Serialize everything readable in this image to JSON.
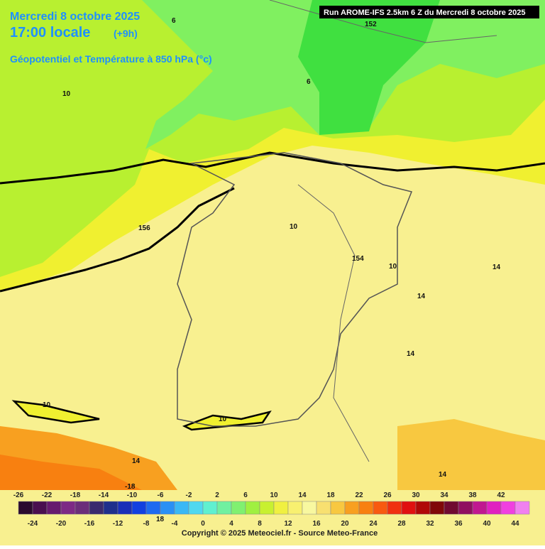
{
  "header": {
    "date": "Mercredi 8 octobre 2025",
    "time": "17:00 locale",
    "offset": "(+9h)",
    "field": "Géopotentiel et Température à 850 hPa (°c)",
    "run": "Run AROME-IFS 2.5km 6 Z du Mercredi 8 octobre 2025"
  },
  "contour_labels": [
    "10",
    "6",
    "152",
    "6",
    "156",
    "10",
    "154",
    "10",
    "14",
    "14",
    "14",
    "10",
    "10",
    "14",
    "18",
    "-18",
    "14"
  ],
  "legend": {
    "top_labels": [
      -26,
      -22,
      -18,
      -14,
      -10,
      -6,
      -2,
      2,
      6,
      10,
      14,
      18,
      22,
      26,
      30,
      34,
      38,
      42
    ],
    "bottom_labels": [
      -24,
      -20,
      -16,
      -12,
      -8,
      -4,
      0,
      4,
      8,
      12,
      16,
      20,
      24,
      28,
      32,
      36,
      40,
      44
    ],
    "colors": [
      "#2b0a2e",
      "#4a0f4f",
      "#661a6e",
      "#7d2a85",
      "#6b2e7a",
      "#3a2a6e",
      "#1f2f8c",
      "#1a2fb8",
      "#1240e0",
      "#1e6af0",
      "#2a90f5",
      "#3ab8f5",
      "#50d8f0",
      "#60f0d0",
      "#70f0a0",
      "#80f070",
      "#a0f040",
      "#c8f030",
      "#f0f040",
      "#f8f070",
      "#f8f8a0",
      "#f8e070",
      "#f8c840",
      "#f8a020",
      "#f88010",
      "#f85a10",
      "#f03010",
      "#e01010",
      "#b00808",
      "#800808",
      "#700a30",
      "#901060",
      "#c01890",
      "#e020c0",
      "#f040e0",
      "#f080f0"
    ]
  },
  "footer": "Copyright © 2025 Meteociel.fr - Source Meteo-France"
}
